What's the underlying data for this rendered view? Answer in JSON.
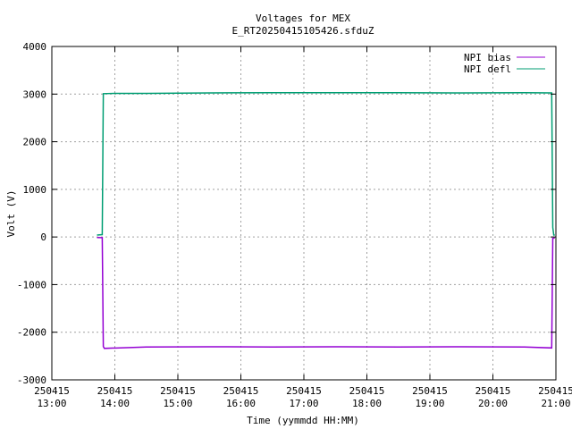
{
  "chart_data": {
    "type": "line",
    "title": "Voltages for MEX",
    "subtitle": "E_RT20250415105426.sfduZ",
    "xlabel": "Time (yymmdd HH:MM)",
    "ylabel": "Volt (V)",
    "xlim": [
      "2025-04-15 13:00",
      "2025-04-15 21:00"
    ],
    "ylim": [
      -3000,
      4000
    ],
    "x_ticks": [
      {
        "date": "250415",
        "time": "13:00"
      },
      {
        "date": "250415",
        "time": "14:00"
      },
      {
        "date": "250415",
        "time": "15:00"
      },
      {
        "date": "250415",
        "time": "16:00"
      },
      {
        "date": "250415",
        "time": "17:00"
      },
      {
        "date": "250415",
        "time": "18:00"
      },
      {
        "date": "250415",
        "time": "19:00"
      },
      {
        "date": "250415",
        "time": "20:00"
      },
      {
        "date": "250415",
        "time": "21:00"
      }
    ],
    "y_ticks": [
      "-3000",
      "-2000",
      "-1000",
      "0",
      "1000",
      "2000",
      "3000",
      "4000"
    ],
    "grid": true,
    "legend_position": "top-right",
    "series": [
      {
        "name": "NPI bias",
        "color": "#9400d3",
        "points": [
          [
            "13:43",
            -10
          ],
          [
            "13:48",
            -15
          ],
          [
            "13:49",
            -2300
          ],
          [
            "13:50",
            -2340
          ],
          [
            "14:30",
            -2310
          ],
          [
            "15:30",
            -2305
          ],
          [
            "16:30",
            -2310
          ],
          [
            "17:30",
            -2305
          ],
          [
            "18:30",
            -2310
          ],
          [
            "19:30",
            -2305
          ],
          [
            "20:30",
            -2310
          ],
          [
            "20:56",
            -2330
          ],
          [
            "20:57",
            -30
          ],
          [
            "20:59",
            -20
          ]
        ]
      },
      {
        "name": "NPI defl",
        "color": "#009e73",
        "points": [
          [
            "13:43",
            40
          ],
          [
            "13:48",
            50
          ],
          [
            "13:49",
            3010
          ],
          [
            "14:00",
            3015
          ],
          [
            "14:30",
            3015
          ],
          [
            "15:30",
            3025
          ],
          [
            "16:30",
            3030
          ],
          [
            "17:30",
            3030
          ],
          [
            "18:30",
            3030
          ],
          [
            "19:30",
            3025
          ],
          [
            "20:30",
            3030
          ],
          [
            "20:56",
            3025
          ],
          [
            "20:57",
            200
          ],
          [
            "20:58",
            40
          ],
          [
            "20:59",
            40
          ]
        ]
      }
    ]
  }
}
